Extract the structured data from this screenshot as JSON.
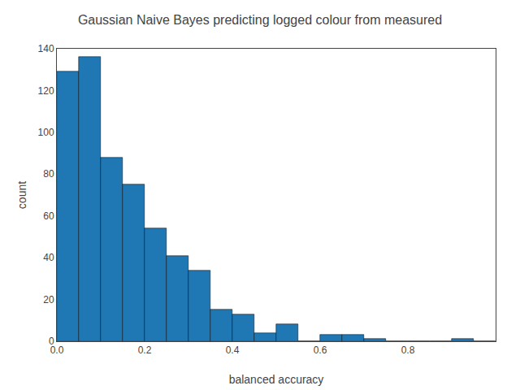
{
  "chart_data": {
    "type": "histogram",
    "title": "Gaussian Naive Bayes predicting logged colour from measured",
    "xlabel": "balanced accuracy",
    "ylabel": "count",
    "bins": [
      0.0,
      0.05,
      0.1,
      0.15,
      0.2,
      0.25,
      0.3,
      0.35,
      0.4,
      0.45,
      0.5,
      0.55,
      0.6,
      0.65,
      0.7,
      0.75,
      0.8,
      0.85,
      0.9,
      0.95,
      1.0
    ],
    "values": [
      129,
      136,
      88,
      75,
      54,
      41,
      34,
      15,
      13,
      4,
      8,
      0,
      3,
      3,
      1,
      0,
      0,
      0,
      1,
      0
    ],
    "color": "#1f77b4",
    "xlim": [
      0,
      1
    ],
    "xticks": [
      {
        "value": 0,
        "label": "0.0"
      },
      0.2,
      0.4,
      0.6,
      0.8
    ],
    "ylim": [
      0,
      140
    ],
    "yticks": [
      0,
      20,
      40,
      60,
      80,
      100,
      120,
      140
    ],
    "grid": false
  }
}
